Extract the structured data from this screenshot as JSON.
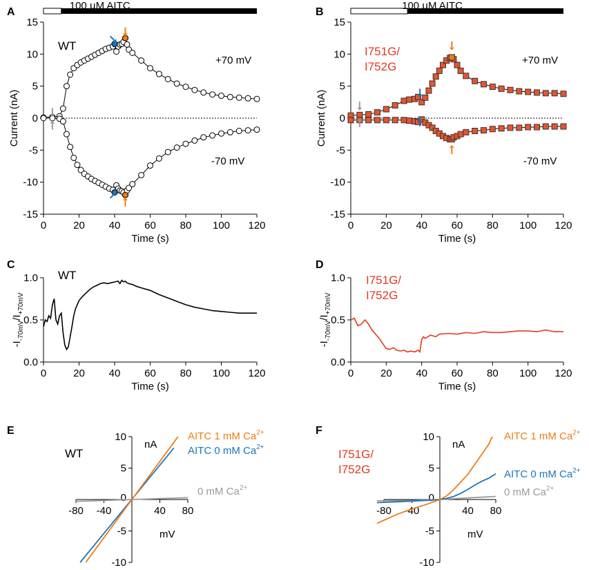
{
  "colors": {
    "wt": "#000000",
    "mut": "#e03a1e",
    "orange": "#ee7d14",
    "blue": "#1b75bc",
    "gray": "#9a9a9a",
    "text": "#000000",
    "mut_marker": "#e8532f"
  },
  "aitc_bar_label": "100 µM AITC",
  "panels": {
    "A": {
      "letter": "A",
      "genotype": [
        "WT"
      ],
      "label_pos": "+70 mV",
      "label_neg": "-70 mV"
    },
    "B": {
      "letter": "B",
      "genotype": [
        "I751G/",
        "I752G"
      ],
      "label_pos": "+70 mV",
      "label_neg": "-70 mV"
    },
    "C": {
      "letter": "C",
      "genotype": [
        "WT"
      ]
    },
    "D": {
      "letter": "D",
      "genotype": [
        "I751G/",
        "I752G"
      ]
    },
    "E": {
      "letter": "E",
      "genotype": [
        "WT"
      ],
      "unit_y": "nA",
      "unit_x": "mV",
      "legend": [
        {
          "text": "AITC 1 mM Ca",
          "sup": "2+",
          "color": "orange"
        },
        {
          "text": "AITC 0 mM Ca",
          "sup": "2+",
          "color": "blue"
        },
        {
          "text": "0 mM Ca",
          "sup": "2+",
          "color": "gray"
        }
      ]
    },
    "F": {
      "letter": "F",
      "genotype": [
        "I751G/",
        "I752G"
      ],
      "unit_y": "nA",
      "unit_x": "mV",
      "legend": [
        {
          "text": "AITC 1 mM Ca",
          "sup": "2+",
          "color": "orange"
        },
        {
          "text": "AITC 0 mM Ca",
          "sup": "2+",
          "color": "blue"
        },
        {
          "text": "0 mM Ca",
          "sup": "2+",
          "color": "gray"
        }
      ]
    }
  },
  "ratio_ylabel": {
    "pre": "-I",
    "sub1": "-70mV",
    "mid": "/I",
    "sub2": "+70mV"
  },
  "chart_data": [
    {
      "panel": "A",
      "type": "scatter",
      "title": "",
      "xlabel": "Time (s)",
      "ylabel": "Current (nA)",
      "xlim": [
        0,
        120
      ],
      "ylim": [
        -15,
        15
      ],
      "xticks": [
        0,
        20,
        40,
        60,
        80,
        100,
        120
      ],
      "yticks": [
        -15,
        -10,
        -5,
        0,
        5,
        10,
        15
      ],
      "aitc_bar": {
        "off": [
          0,
          10
        ],
        "on": [
          10,
          120
        ]
      },
      "series": [
        {
          "name": "+70 mV",
          "x": [
            0,
            5,
            9,
            11,
            13,
            15,
            17,
            19,
            21,
            23,
            25,
            27,
            29,
            31,
            33,
            35,
            37,
            39,
            40,
            41,
            42,
            43,
            44,
            45,
            46,
            47,
            48,
            50,
            55,
            60,
            65,
            70,
            75,
            80,
            85,
            90,
            95,
            100,
            105,
            110,
            115,
            120
          ],
          "values": [
            0.1,
            0.2,
            0.3,
            1.5,
            5,
            6.8,
            7.8,
            8.3,
            8.7,
            9.0,
            9.3,
            9.6,
            9.9,
            10.2,
            10.5,
            10.8,
            11.0,
            11.2,
            11.6,
            10.4,
            11.2,
            11.5,
            11.6,
            11.9,
            12.5,
            11.5,
            10.7,
            10.2,
            9.0,
            7.8,
            6.9,
            6.1,
            5.4,
            4.9,
            4.4,
            4.0,
            3.7,
            3.5,
            3.3,
            3.2,
            3.1,
            3.0
          ]
        },
        {
          "name": "-70 mV",
          "x": [
            0,
            5,
            9,
            11,
            13,
            15,
            17,
            19,
            21,
            23,
            25,
            27,
            29,
            31,
            33,
            35,
            37,
            39,
            40,
            41,
            42,
            43,
            44,
            45,
            46,
            47,
            48,
            50,
            55,
            60,
            65,
            70,
            75,
            80,
            85,
            90,
            95,
            100,
            105,
            110,
            115,
            120
          ],
          "values": [
            0,
            0,
            -0.1,
            -0.5,
            -2.5,
            -4.5,
            -6.2,
            -7.3,
            -8.1,
            -8.7,
            -9.1,
            -9.5,
            -9.8,
            -10.1,
            -10.4,
            -10.7,
            -11.0,
            -11.2,
            -11.6,
            -10.5,
            -11.0,
            -11.3,
            -11.4,
            -11.6,
            -12.0,
            -11.3,
            -10.9,
            -10.3,
            -8.9,
            -7.4,
            -6.3,
            -5.3,
            -4.6,
            -4.0,
            -3.5,
            -3.0,
            -2.7,
            -2.4,
            -2.2,
            -2.0,
            -1.9,
            -1.8
          ]
        }
      ],
      "highlights": [
        {
          "series": "+70 mV",
          "x": 40,
          "y": 11.6,
          "color": "blue"
        },
        {
          "series": "+70 mV",
          "x": 46,
          "y": 12.5,
          "color": "orange"
        },
        {
          "series": "-70 mV",
          "x": 40,
          "y": -11.6,
          "color": "blue"
        },
        {
          "series": "-70 mV",
          "x": 46,
          "y": -12,
          "color": "orange"
        }
      ],
      "arrows": [
        {
          "x": 5,
          "y": 1.6,
          "dir": "down",
          "color": "gray"
        },
        {
          "x": 5,
          "y": -1.8,
          "dir": "up",
          "color": "gray"
        },
        {
          "x": 37.5,
          "y": 12.8,
          "dir": "down-right",
          "color": "blue"
        },
        {
          "x": 46,
          "y": 14.2,
          "dir": "down",
          "color": "orange"
        },
        {
          "x": 37.5,
          "y": -12.5,
          "dir": "up-right",
          "color": "blue"
        },
        {
          "x": 46,
          "y": -13.8,
          "dir": "up",
          "color": "orange"
        }
      ]
    },
    {
      "panel": "B",
      "type": "scatter",
      "title": "",
      "xlabel": "Time (s)",
      "ylabel": "Current (nA)",
      "xlim": [
        0,
        120
      ],
      "ylim": [
        -15,
        15
      ],
      "xticks": [
        0,
        20,
        40,
        60,
        80,
        100,
        120
      ],
      "yticks": [
        -15,
        -10,
        -5,
        0,
        5,
        10,
        15
      ],
      "aitc_bar": {
        "off": [
          0,
          32
        ],
        "on": [
          32,
          120
        ]
      },
      "series": [
        {
          "name": "+70 mV",
          "x": [
            0,
            5,
            10,
            15,
            20,
            25,
            30,
            33,
            36,
            38,
            40,
            42,
            44,
            46,
            48,
            50,
            52,
            54,
            56,
            57,
            58,
            60,
            62,
            65,
            70,
            75,
            80,
            85,
            90,
            95,
            100,
            105,
            110,
            115,
            120
          ],
          "values": [
            0.4,
            0.5,
            0.6,
            0.9,
            1.4,
            2.0,
            2.7,
            2.9,
            3.0,
            3.3,
            2.5,
            3.2,
            4.3,
            5.4,
            6.5,
            7.4,
            8.3,
            9.0,
            9.4,
            9.5,
            9.2,
            8.3,
            7.4,
            6.6,
            5.8,
            5.3,
            4.9,
            4.6,
            4.4,
            4.2,
            4.1,
            4.0,
            3.9,
            3.9,
            3.8
          ]
        },
        {
          "name": "-70 mV",
          "x": [
            0,
            5,
            10,
            15,
            20,
            25,
            30,
            33,
            36,
            38,
            40,
            42,
            44,
            46,
            48,
            50,
            52,
            54,
            56,
            57,
            58,
            60,
            62,
            65,
            70,
            75,
            80,
            85,
            90,
            95,
            100,
            105,
            110,
            115,
            120
          ],
          "values": [
            -0.3,
            -0.3,
            -0.3,
            -0.3,
            -0.3,
            -0.3,
            -0.3,
            -0.4,
            -0.5,
            -0.6,
            -0.2,
            -0.7,
            -1.1,
            -1.5,
            -2.0,
            -2.4,
            -2.8,
            -3.1,
            -3.3,
            -3.3,
            -3.0,
            -2.8,
            -2.5,
            -2.2,
            -2.0,
            -1.9,
            -1.7,
            -1.6,
            -1.5,
            -1.5,
            -1.4,
            -1.4,
            -1.3,
            -1.3,
            -1.3
          ]
        }
      ],
      "highlights": [
        {
          "series": "+70 mV",
          "x": 57,
          "y": 9.5,
          "color": "orange"
        }
      ],
      "arrows": [
        {
          "x": 5,
          "y": 2.6,
          "dir": "down",
          "color": "gray"
        },
        {
          "x": 5,
          "y": -1.4,
          "dir": "up",
          "color": "gray"
        },
        {
          "x": 39,
          "y": 4.6,
          "dir": "down",
          "color": "blue"
        },
        {
          "x": 39,
          "y": -1.3,
          "dir": "up",
          "color": "blue"
        },
        {
          "x": 57,
          "y": 12,
          "dir": "down",
          "color": "orange"
        },
        {
          "x": 57,
          "y": -5.6,
          "dir": "up",
          "color": "orange"
        }
      ]
    },
    {
      "panel": "C",
      "type": "line",
      "title": "",
      "xlabel": "Time (s)",
      "ylabel": "-I-70mV/I+70mV",
      "xlim": [
        0,
        120
      ],
      "ylim": [
        0,
        1.0
      ],
      "xticks": [
        0,
        20,
        40,
        60,
        80,
        100,
        120
      ],
      "yticks": [
        0,
        0.5,
        1.0
      ],
      "x": [
        0,
        1,
        2,
        3,
        4,
        5,
        6,
        7,
        8,
        9,
        10,
        11,
        12,
        13,
        14,
        15,
        16,
        17,
        18,
        19,
        20,
        22,
        24,
        26,
        28,
        30,
        32,
        34,
        36,
        38,
        40,
        42,
        43,
        44,
        45,
        46,
        47,
        48,
        50,
        52,
        55,
        60,
        65,
        70,
        75,
        80,
        85,
        90,
        95,
        100,
        105,
        110,
        115,
        120
      ],
      "values": [
        0.42,
        0.5,
        0.48,
        0.55,
        0.52,
        0.68,
        0.75,
        0.5,
        0.45,
        0.55,
        0.58,
        0.35,
        0.2,
        0.15,
        0.18,
        0.3,
        0.42,
        0.55,
        0.63,
        0.68,
        0.73,
        0.78,
        0.82,
        0.86,
        0.89,
        0.91,
        0.93,
        0.94,
        0.93,
        0.94,
        0.95,
        0.96,
        0.93,
        0.97,
        0.95,
        0.96,
        0.94,
        0.93,
        0.92,
        0.9,
        0.88,
        0.85,
        0.8,
        0.76,
        0.72,
        0.68,
        0.65,
        0.63,
        0.61,
        0.6,
        0.59,
        0.58,
        0.58,
        0.58
      ]
    },
    {
      "panel": "D",
      "type": "line",
      "title": "",
      "xlabel": "Time (s)",
      "ylabel": "-I-70mV/I+70mV",
      "xlim": [
        0,
        120
      ],
      "ylim": [
        0,
        1.0
      ],
      "xticks": [
        0,
        20,
        40,
        60,
        80,
        100,
        120
      ],
      "yticks": [
        0,
        0.5,
        1.0
      ],
      "x": [
        0,
        2,
        4,
        6,
        8,
        10,
        12,
        14,
        16,
        18,
        20,
        22,
        24,
        26,
        28,
        30,
        32,
        34,
        36,
        38,
        39,
        40,
        41,
        42,
        45,
        48,
        50,
        55,
        60,
        65,
        70,
        75,
        80,
        85,
        90,
        95,
        100,
        105,
        110,
        115,
        120
      ],
      "values": [
        0.5,
        0.52,
        0.43,
        0.45,
        0.5,
        0.45,
        0.38,
        0.33,
        0.28,
        0.22,
        0.16,
        0.15,
        0.17,
        0.14,
        0.13,
        0.14,
        0.12,
        0.13,
        0.12,
        0.14,
        0.12,
        0.27,
        0.3,
        0.28,
        0.32,
        0.3,
        0.33,
        0.34,
        0.33,
        0.35,
        0.34,
        0.36,
        0.35,
        0.35,
        0.36,
        0.37,
        0.37,
        0.36,
        0.38,
        0.36,
        0.36
      ]
    },
    {
      "panel": "E",
      "type": "line",
      "title": "",
      "xlabel": "mV",
      "ylabel": "nA",
      "xlim": [
        -80,
        80
      ],
      "ylim": [
        -10,
        10
      ],
      "xticks": [
        -80,
        -40,
        40,
        80
      ],
      "yticks": [
        -10,
        -5,
        5,
        10
      ],
      "series": [
        {
          "name": "AITC 1 mM Ca2+",
          "color": "orange",
          "x": [
            -66,
            66
          ],
          "values": [
            -10,
            10
          ]
        },
        {
          "name": "AITC 0 mM Ca2+",
          "color": "blue",
          "x": [
            -74,
            60
          ],
          "values": [
            -10,
            8.2
          ]
        },
        {
          "name": "0 mM Ca2+",
          "color": "gray",
          "x": [
            -80,
            80
          ],
          "values": [
            -0.3,
            0.3
          ]
        }
      ]
    },
    {
      "panel": "F",
      "type": "line",
      "title": "",
      "xlabel": "mV",
      "ylabel": "nA",
      "xlim": [
        -80,
        80
      ],
      "ylim": [
        -10,
        10
      ],
      "xticks": [
        -80,
        -40,
        40,
        80
      ],
      "yticks": [
        -10,
        -5,
        5,
        10
      ],
      "series": [
        {
          "name": "AITC 1 mM Ca2+",
          "color": "orange",
          "x": [
            -90,
            -80,
            -60,
            -40,
            -20,
            0,
            10,
            20,
            30,
            40,
            50,
            60,
            70,
            75
          ],
          "values": [
            -3.8,
            -3.3,
            -2.3,
            -1.5,
            -0.8,
            0,
            0.6,
            1.6,
            2.8,
            4.0,
            5.6,
            7.2,
            8.8,
            10
          ]
        },
        {
          "name": "AITC 0 mM Ca2+",
          "color": "blue",
          "x": [
            -90,
            -80,
            -60,
            -40,
            -20,
            0,
            10,
            20,
            30,
            40,
            50,
            60,
            70,
            80
          ],
          "values": [
            -0.5,
            -0.45,
            -0.35,
            -0.25,
            -0.15,
            0,
            0.2,
            0.5,
            1.0,
            1.6,
            2.3,
            2.9,
            3.4,
            4.1
          ]
        },
        {
          "name": "0 mM Ca2+",
          "color": "gray",
          "x": [
            -90,
            -40,
            0,
            40,
            80
          ],
          "values": [
            -0.2,
            -0.15,
            0,
            0.25,
            0.5
          ]
        }
      ]
    }
  ]
}
